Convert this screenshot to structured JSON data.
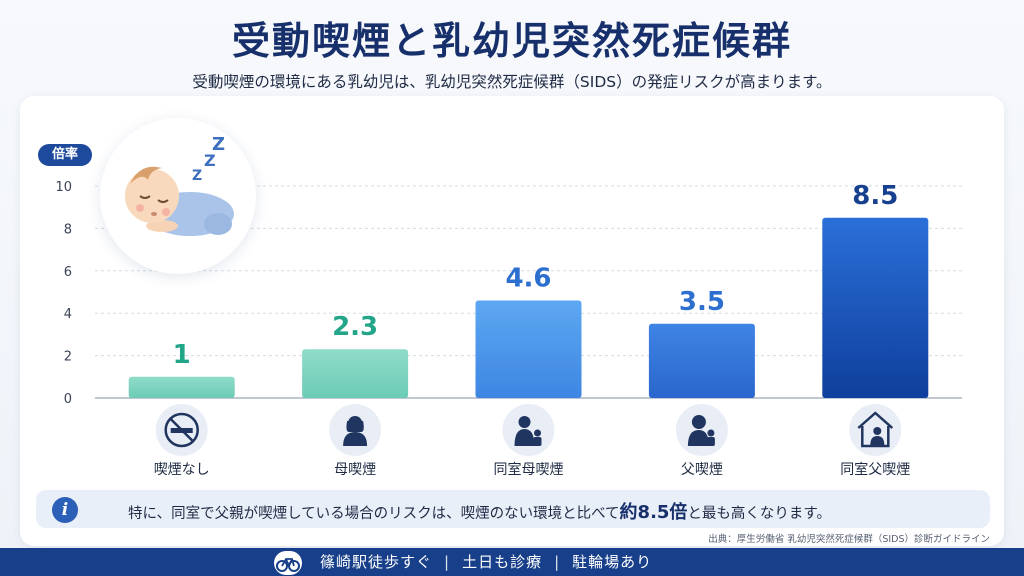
{
  "title": "受動喫煙と乳幼児突然死症候群",
  "subtitle": "受動喫煙の環境にある乳幼児は、乳幼児突然死症候群（SIDS）の発症リスクが高まります。",
  "chart_data": {
    "type": "bar",
    "ylabel": "倍率",
    "ylim": [
      0,
      10
    ],
    "yticks": [
      "0",
      "2",
      "4",
      "6",
      "8",
      "10"
    ],
    "grid": true,
    "categories": [
      "喫煙なし",
      "母喫煙",
      "同室母喫煙",
      "父喫煙",
      "同室父喫煙"
    ],
    "values": [
      1,
      2.3,
      4.6,
      3.5,
      8.5
    ],
    "value_labels": [
      "1",
      "2.3",
      "4.6",
      "3.5",
      "8.5"
    ],
    "icons": [
      "no-smoking-icon",
      "mother-icon",
      "mother-child-icon",
      "father-child-icon",
      "house-father-icon"
    ],
    "colors": {
      "label_green": "#23a58a",
      "label_blue": "#2d6fcf",
      "label_navy": "#17408f"
    }
  },
  "illustration": {
    "icon": "sleeping-baby-icon",
    "zzz": "Z Z Z"
  },
  "note": {
    "icon": "info-icon",
    "info_glyph": "i",
    "before": "特に、同室で父親が喫煙している場合のリスクは、喫煙のない環境と比べて",
    "emphasis": "約8.5倍",
    "after": "と最も高くなります。"
  },
  "source": "出典：厚生労働省 乳幼児突然死症候群（SIDS）診断ガイドライン",
  "footer": {
    "icon": "bicycle-icon",
    "item1": "篠崎駅徒歩すぐ",
    "item2": "土日も診療",
    "item3": "駐輪場あり",
    "separator": "|"
  }
}
